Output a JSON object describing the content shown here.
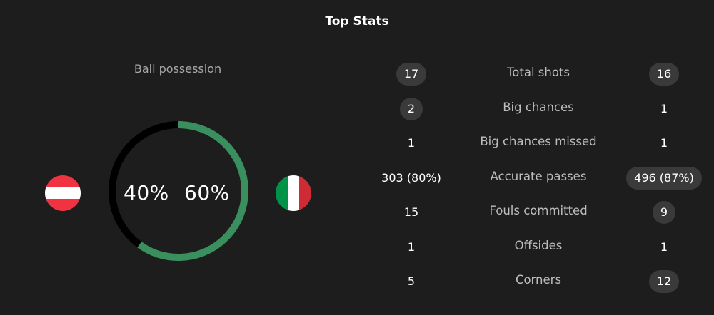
{
  "title": "Top Stats",
  "possession": {
    "label": "Ball possession",
    "home_value": "40%",
    "away_value": "60%",
    "home_fraction": 0.4,
    "away_fraction": 0.6,
    "home_color": "#000000",
    "away_color": "#3a8f5e",
    "home_flag": "austria-flag-icon",
    "away_flag": "italy-flag-icon"
  },
  "stats": [
    {
      "label": "Total shots",
      "home": "17",
      "away": "16",
      "highlight": "both"
    },
    {
      "label": "Big chances",
      "home": "2",
      "away": "1",
      "highlight": "home"
    },
    {
      "label": "Big chances missed",
      "home": "1",
      "away": "1",
      "highlight": "none"
    },
    {
      "label": "Accurate passes",
      "home": "303 (80%)",
      "away": "496 (87%)",
      "highlight": "away"
    },
    {
      "label": "Fouls committed",
      "home": "15",
      "away": "9",
      "highlight": "away"
    },
    {
      "label": "Offsides",
      "home": "1",
      "away": "1",
      "highlight": "none"
    },
    {
      "label": "Corners",
      "home": "5",
      "away": "12",
      "highlight": "away"
    }
  ]
}
